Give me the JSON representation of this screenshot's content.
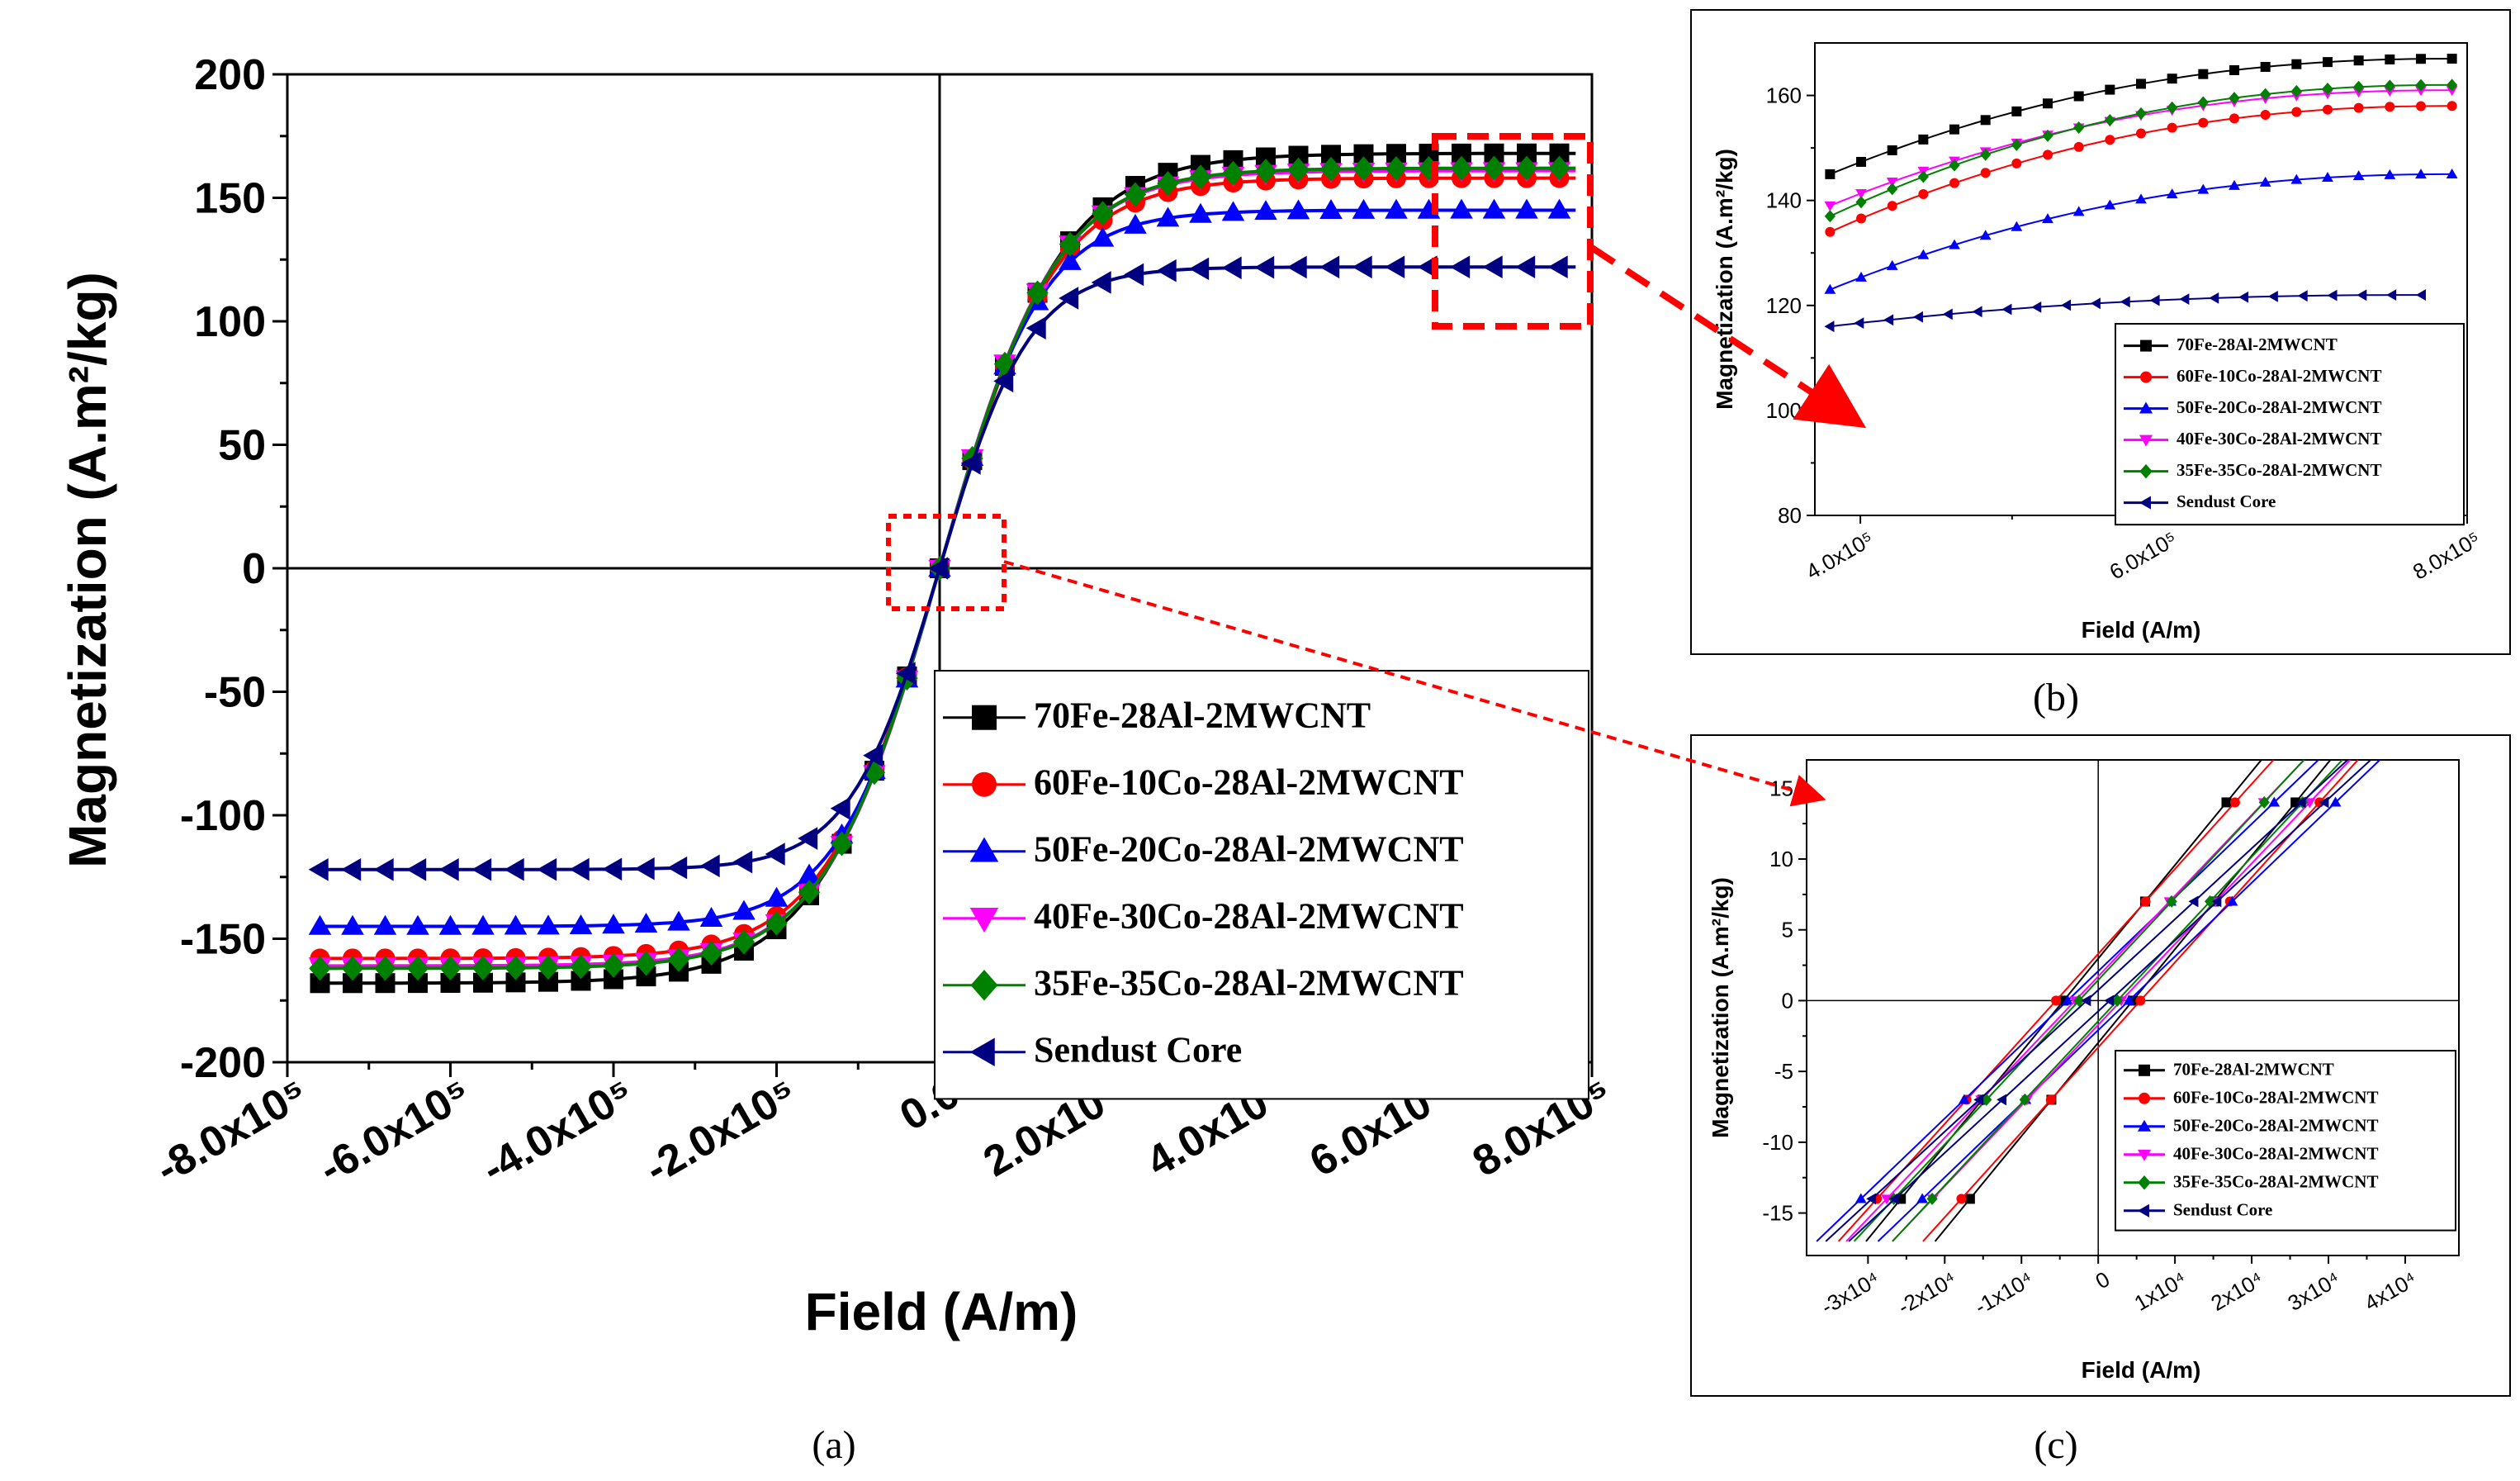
{
  "figure": {
    "panel_labels": [
      "(a)",
      "(b)",
      "(c)"
    ]
  },
  "series_colors": {
    "70Fe-28Al-2MWCNT": "#000000",
    "60Fe-10Co-28Al-2MWCNT": "#ff0000",
    "50Fe-20Co-28Al-2MWCNT": "#0000ff",
    "40Fe-30Co-28Al-2MWCNT": "#ff00ff",
    "35Fe-35Co-28Al-2MWCNT": "#008000",
    "Sendust Core": "#000080"
  },
  "series_markers": {
    "70Fe-28Al-2MWCNT": "square",
    "60Fe-10Co-28Al-2MWCNT": "circle",
    "50Fe-20Co-28Al-2MWCNT": "triangle-up",
    "40Fe-30Co-28Al-2MWCNT": "triangle-down",
    "35Fe-35Co-28Al-2MWCNT": "diamond",
    "Sendust Core": "triangle-left"
  },
  "chart_data": [
    {
      "panel": "(a)",
      "type": "line",
      "title": "",
      "xlabel": "Field (A/m)",
      "ylabel": "Magnetization (A.m²/kg)",
      "xlim": [
        -800000,
        800000
      ],
      "ylim": [
        -200,
        200
      ],
      "xticks": [
        -800000,
        -600000,
        -400000,
        -200000,
        0,
        200000,
        400000,
        600000,
        800000
      ],
      "xtick_labels": [
        "-8.0x10⁵",
        "-6.0x10⁵",
        "-4.0x10⁵",
        "-2.0x10⁵",
        "0.0",
        "2.0x10⁵",
        "4.0x10⁵",
        "6.0x10⁵",
        "8.0x10⁵"
      ],
      "yticks": [
        -200,
        -150,
        -100,
        -50,
        0,
        50,
        100,
        150,
        200
      ],
      "ytick_labels": [
        "-200",
        "-150",
        "-100",
        "-50",
        "0",
        "50",
        "100",
        "150",
        "200"
      ],
      "legend_position": "bottom-right",
      "zero_lines": true,
      "series": [
        {
          "name": "70Fe-28Al-2MWCNT",
          "Ms": 168,
          "h0": 150000
        },
        {
          "name": "60Fe-10Co-28Al-2MWCNT",
          "Ms": 158,
          "h0": 140000
        },
        {
          "name": "50Fe-20Co-28Al-2MWCNT",
          "Ms": 145,
          "h0": 125000
        },
        {
          "name": "40Fe-30Co-28Al-2MWCNT",
          "Ms": 161,
          "h0": 140000
        },
        {
          "name": "35Fe-35Co-28Al-2MWCNT",
          "Ms": 162,
          "h0": 142000
        },
        {
          "name": "Sendust Core",
          "Ms": 122,
          "h0": 110000
        }
      ],
      "annotations": [
        "zoom box near origin → panel (c)",
        "zoom box at high field → panel (b)"
      ]
    },
    {
      "panel": "(b)",
      "type": "line",
      "title": "",
      "xlabel": "Field (A/m)",
      "ylabel": "Magnetization (A.m²/kg)",
      "xlim": [
        370000,
        800000
      ],
      "ylim": [
        80,
        170
      ],
      "xticks": [
        400000,
        600000,
        800000
      ],
      "xtick_labels": [
        "4.0x10⁵",
        "6.0x10⁵",
        "8.0x10⁵"
      ],
      "yticks": [
        80,
        100,
        120,
        140,
        160
      ],
      "ytick_labels": [
        "80",
        "100",
        "120",
        "140",
        "160"
      ],
      "legend_position": "bottom-right",
      "series": [
        {
          "name": "70Fe-28Al-2MWCNT",
          "x": [
            380000,
            790000
          ],
          "y": [
            145,
            167
          ]
        },
        {
          "name": "60Fe-10Co-28Al-2MWCNT",
          "x": [
            380000,
            790000
          ],
          "y": [
            134,
            158
          ]
        },
        {
          "name": "50Fe-20Co-28Al-2MWCNT",
          "x": [
            380000,
            790000
          ],
          "y": [
            123,
            145
          ]
        },
        {
          "name": "40Fe-30Co-28Al-2MWCNT",
          "x": [
            380000,
            790000
          ],
          "y": [
            139,
            161
          ]
        },
        {
          "name": "35Fe-35Co-28Al-2MWCNT",
          "x": [
            380000,
            790000
          ],
          "y": [
            137,
            162
          ]
        },
        {
          "name": "Sendust Core",
          "x": [
            380000,
            770000
          ],
          "y": [
            116,
            122
          ]
        }
      ]
    },
    {
      "panel": "(c)",
      "type": "line",
      "title": "",
      "xlabel": "Field (A/m)",
      "ylabel": "Magnetization (A.m²/kg)",
      "xlim": [
        -38000,
        47000
      ],
      "ylim": [
        -18,
        17
      ],
      "xticks": [
        -30000,
        -20000,
        -10000,
        0,
        10000,
        20000,
        30000,
        40000
      ],
      "xtick_labels": [
        "-3x10⁴",
        "-2x10⁴",
        "-1x10⁴",
        "0",
        "1x10⁴",
        "2x10⁴",
        "3x10⁴",
        "4x10⁴"
      ],
      "yticks": [
        -15,
        -10,
        -5,
        0,
        5,
        10,
        15
      ],
      "ytick_labels": [
        "-15",
        "-10",
        "-5",
        "0",
        "5",
        "10",
        "15"
      ],
      "legend_position": "bottom-right",
      "zero_lines": true,
      "series": [
        {
          "name": "70Fe-28Al-2MWCNT",
          "slope": 0.00066,
          "hc": 4500
        },
        {
          "name": "60Fe-10Co-28Al-2MWCNT",
          "slope": 0.0006,
          "hc": 5500
        },
        {
          "name": "50Fe-20Co-28Al-2MWCNT",
          "slope": 0.00052,
          "hc": 4000
        },
        {
          "name": "40Fe-30Co-28Al-2MWCNT",
          "slope": 0.00057,
          "hc": 3000
        },
        {
          "name": "35Fe-35Co-28Al-2MWCNT",
          "slope": 0.00058,
          "hc": 2500
        },
        {
          "name": "Sendust Core",
          "slope": 0.0005,
          "hc": 1500
        }
      ]
    }
  ]
}
